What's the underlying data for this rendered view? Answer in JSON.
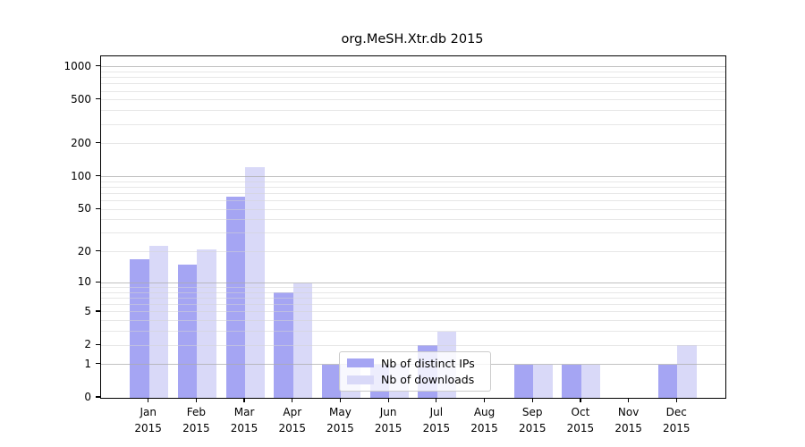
{
  "title": "org.MeSH.Xtr.db 2015",
  "legend": {
    "ips_label": "Nb of distinct IPs",
    "downloads_label": "Nb of downloads"
  },
  "colors": {
    "ips_bar": "#a5a5f3",
    "downloads_bar": "#d9d9f8",
    "grid_major": "rgba(172,172,172,0.75)",
    "grid_minor": "rgba(212,212,212,0.55)",
    "axis": "#000000"
  },
  "chart_data": {
    "type": "bar",
    "title": "org.MeSH.Xtr.db 2015",
    "categories": [
      "Jan 2015",
      "Feb 2015",
      "Mar 2015",
      "Apr 2015",
      "May 2015",
      "Jun 2015",
      "Jul 2015",
      "Aug 2015",
      "Sep 2015",
      "Oct 2015",
      "Nov 2015",
      "Dec 2015"
    ],
    "month_labels": [
      [
        "Jan",
        "2015"
      ],
      [
        "Feb",
        "2015"
      ],
      [
        "Mar",
        "2015"
      ],
      [
        "Apr",
        "2015"
      ],
      [
        "May",
        "2015"
      ],
      [
        "Jun",
        "2015"
      ],
      [
        "Jul",
        "2015"
      ],
      [
        "Aug",
        "2015"
      ],
      [
        "Sep",
        "2015"
      ],
      [
        "Oct",
        "2015"
      ],
      [
        "Nov",
        "2015"
      ],
      [
        "Dec",
        "2015"
      ]
    ],
    "series": [
      {
        "name": "Nb of distinct IPs",
        "color": "#a5a5f3",
        "values": [
          17,
          15,
          65,
          8,
          1,
          1,
          2,
          0,
          1,
          1,
          0,
          1
        ]
      },
      {
        "name": "Nb of downloads",
        "color": "#d9d9f8",
        "values": [
          23,
          21,
          123,
          10,
          1,
          1,
          3,
          0,
          1,
          1,
          0,
          2
        ]
      }
    ],
    "xlabel": "",
    "ylabel": "",
    "yscale": "log1p",
    "ylim": [
      0,
      1200
    ],
    "yticks": [
      0,
      1,
      2,
      5,
      10,
      20,
      50,
      100,
      200,
      500,
      1000
    ],
    "major_gridlines": [
      1,
      10,
      100,
      1000
    ],
    "minor_gridlines": [
      2,
      3,
      4,
      5,
      6,
      7,
      8,
      9,
      20,
      30,
      40,
      50,
      60,
      70,
      80,
      90,
      200,
      300,
      400,
      500,
      600,
      700,
      800,
      900
    ],
    "grid": true,
    "legend_position": "inside-lower-center"
  }
}
